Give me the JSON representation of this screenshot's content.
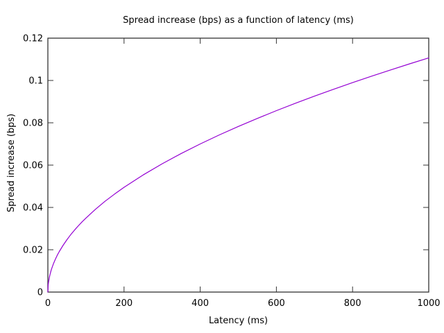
{
  "figure": {
    "title": "Spread increase (bps) as a function of latency (ms)",
    "xlabel": "Latency (ms)",
    "ylabel": "Spread increase (bps)"
  },
  "colors": {
    "background": "#ffffff",
    "border": "#333333",
    "text": "#000000",
    "curve": "#9400d3"
  },
  "chart_data": {
    "type": "line",
    "title": "Spread increase (bps) as a function of latency (ms)",
    "xlabel": "Latency (ms)",
    "ylabel": "Spread increase (bps)",
    "xlim": [
      0,
      1000
    ],
    "ylim": [
      0,
      0.12
    ],
    "x_ticks": [
      0,
      200,
      400,
      600,
      800,
      1000
    ],
    "x_tick_labels": [
      "0",
      "200",
      "400",
      "600",
      "800",
      "1000"
    ],
    "y_ticks": [
      0,
      0.02,
      0.04,
      0.06,
      0.08,
      0.1,
      0.12
    ],
    "y_tick_labels": [
      "0",
      "0.02",
      "0.04",
      "0.06",
      "0.08",
      "0.1",
      "0.12"
    ],
    "grid": false,
    "legend": null,
    "border_box": true,
    "mirrored_inward_ticks": true,
    "series": [
      {
        "name": "spread_increase",
        "color": "#9400d3",
        "x": [
          0,
          1,
          2,
          4,
          6,
          8,
          10,
          15,
          20,
          25,
          30,
          40,
          50,
          60,
          70,
          80,
          90,
          100,
          125,
          150,
          175,
          200,
          250,
          300,
          350,
          400,
          450,
          500,
          550,
          600,
          650,
          700,
          750,
          800,
          850,
          900,
          950,
          1000
        ],
        "y": [
          0,
          0.0035,
          0.00495,
          0.007,
          0.00857,
          0.0099,
          0.01107,
          0.01355,
          0.01565,
          0.0175,
          0.01917,
          0.02214,
          0.02475,
          0.02711,
          0.02928,
          0.0313,
          0.0332,
          0.035,
          0.03913,
          0.04287,
          0.0463,
          0.0495,
          0.05534,
          0.06062,
          0.06548,
          0.07,
          0.07425,
          0.07826,
          0.08208,
          0.08573,
          0.08923,
          0.0926,
          0.09585,
          0.09899,
          0.10204,
          0.105,
          0.10787,
          0.11068
        ]
      }
    ]
  }
}
